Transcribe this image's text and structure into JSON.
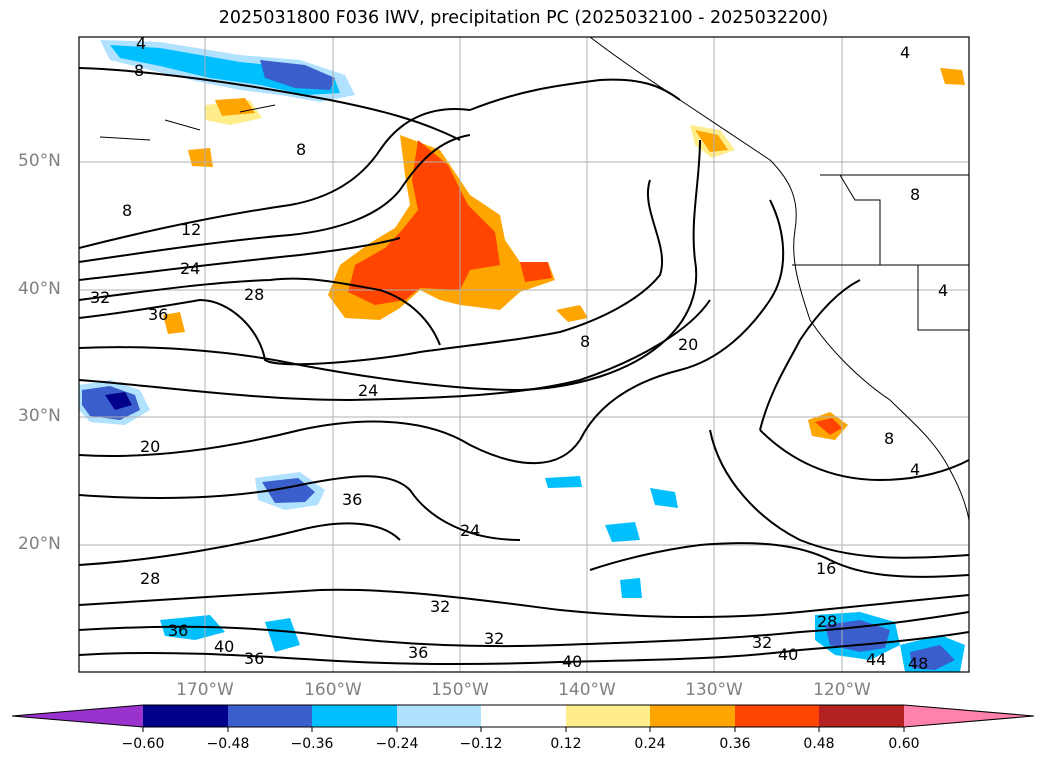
{
  "title": "2025031800 F036 IWV, precipitation PC (2025032100 - 2025032200)",
  "map": {
    "lat_labels": [
      "50°N",
      "40°N",
      "30°N",
      "20°N"
    ],
    "lon_labels": [
      "170°W",
      "160°W",
      "150°W",
      "140°W",
      "130°W",
      "120°W"
    ],
    "contour_labels": [
      "4",
      "8",
      "8",
      "8",
      "12",
      "24",
      "28",
      "32",
      "36",
      "20",
      "24",
      "36",
      "24",
      "28",
      "36",
      "40",
      "36",
      "32",
      "32",
      "36",
      "40",
      "16",
      "20",
      "8",
      "8",
      "4",
      "4",
      "4",
      "8",
      "28",
      "32",
      "40",
      "44",
      "48"
    ]
  },
  "colorbar": {
    "ticks": [
      "−0.60",
      "−0.48",
      "−0.36",
      "−0.24",
      "−0.12",
      "0.12",
      "0.24",
      "0.36",
      "0.48",
      "0.60"
    ],
    "colors": [
      "#9a32cd",
      "#00008b",
      "#3a5fcd",
      "#00bfff",
      "#b0e2ff",
      "#ffffff",
      "#ffec8b",
      "#ffa500",
      "#ff4500",
      "#b22222",
      "#ff82ab"
    ]
  }
}
